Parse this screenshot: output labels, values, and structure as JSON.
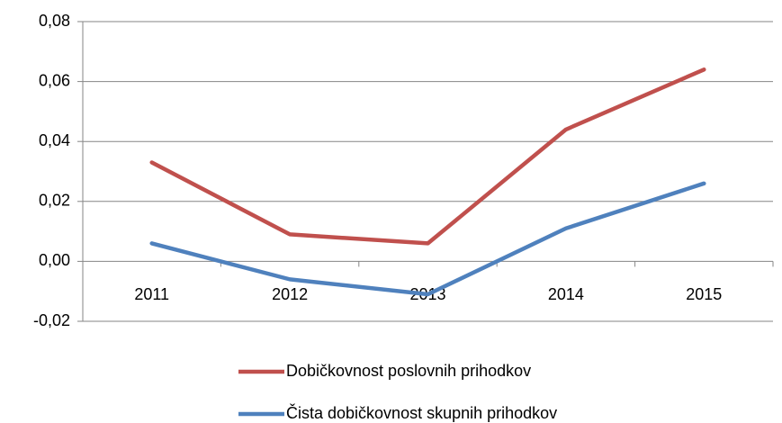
{
  "chart_data": {
    "type": "line",
    "categories": [
      "2011",
      "2012",
      "2013",
      "2014",
      "2015"
    ],
    "series": [
      {
        "name": "Dobičkovnost poslovnih prihodkov",
        "color": "#c0504d",
        "values": [
          0.033,
          0.009,
          0.006,
          0.044,
          0.064
        ]
      },
      {
        "name": "Čista dobičkovnost skupnih prihodkov",
        "color": "#4f81bd",
        "values": [
          0.006,
          -0.006,
          -0.011,
          0.011,
          0.026
        ]
      }
    ],
    "ylim": [
      -0.02,
      0.08
    ],
    "yticks": [
      {
        "value": -0.02,
        "label": "-0,02"
      },
      {
        "value": 0,
        "label": "0,00"
      },
      {
        "value": 0.02,
        "label": "0,02"
      },
      {
        "value": 0.04,
        "label": "0,04"
      },
      {
        "value": 0.06,
        "label": "0,06"
      },
      {
        "value": 0.08,
        "label": "0,08"
      }
    ],
    "grid": true,
    "legend": "bottom"
  }
}
